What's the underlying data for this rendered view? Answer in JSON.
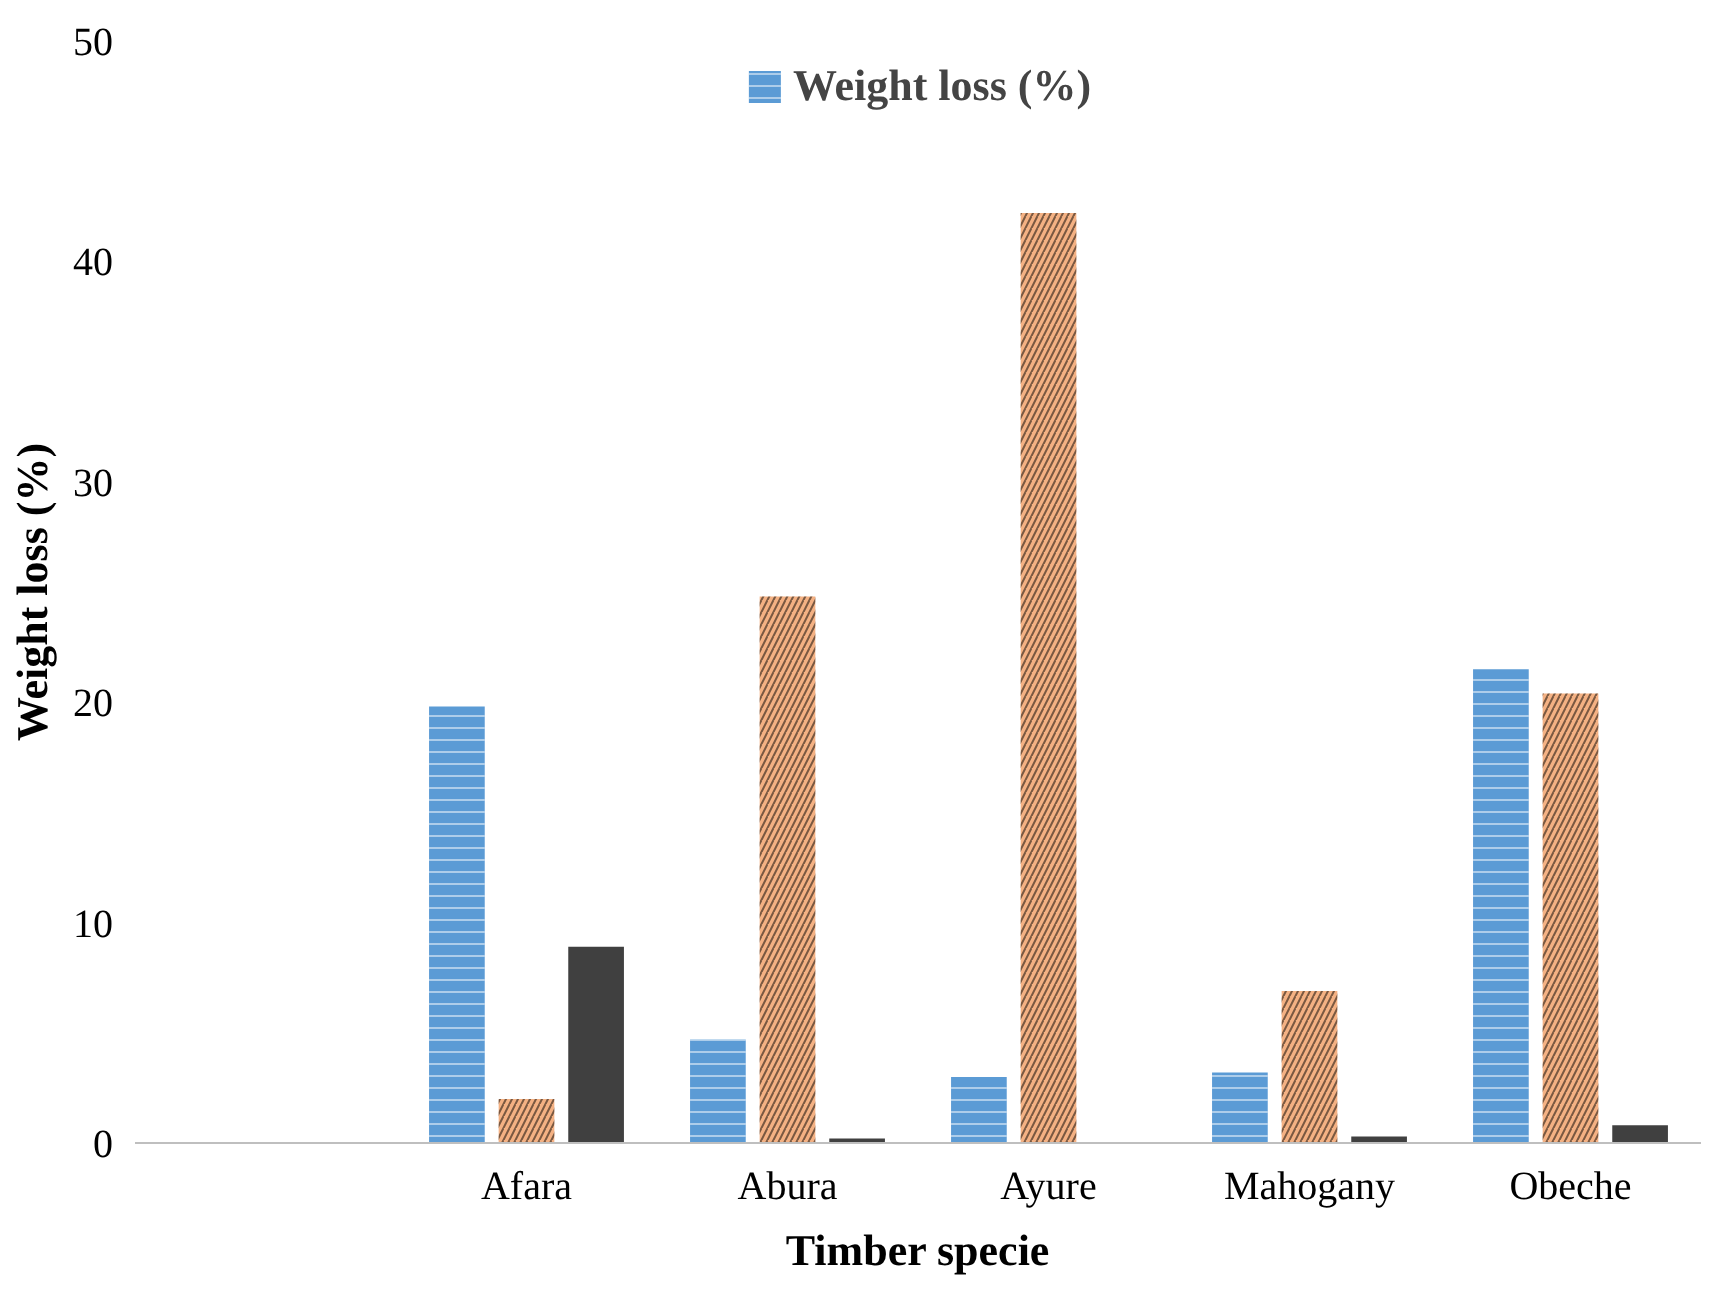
{
  "chart_data": {
    "type": "bar",
    "xlabel": "Timber specie",
    "ylabel": "Weight loss (%)",
    "categories": [
      null,
      "Afara",
      "Abura",
      "Ayure",
      "Mahogany",
      "Obeche"
    ],
    "series": [
      {
        "name": "Weight loss (%)",
        "color": "#5b9bd5",
        "values": [
          null,
          19.8,
          4.7,
          3.0,
          3.2,
          21.5
        ]
      },
      {
        "color": "#f4b183",
        "values": [
          null,
          2.0,
          24.8,
          42.2,
          6.9,
          20.4
        ]
      },
      {
        "color": "#404040",
        "values": [
          null,
          8.9,
          0.2,
          null,
          0.3,
          0.8
        ]
      }
    ],
    "ylim": [
      0,
      50
    ],
    "yticks": [
      0,
      10,
      20,
      30,
      40,
      50
    ],
    "grid": false,
    "legend": "top"
  }
}
